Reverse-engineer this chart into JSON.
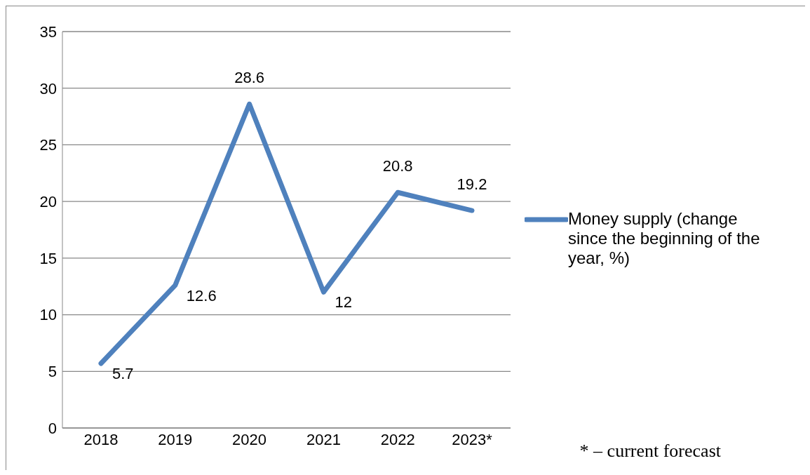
{
  "chart_data": {
    "type": "line",
    "categories": [
      "2018",
      "2019",
      "2020",
      "2021",
      "2022",
      "2023*"
    ],
    "series": [
      {
        "name": "Money supply (change since the beginning of the year, %)",
        "color": "#4f81bd",
        "values": [
          5.7,
          12.6,
          28.6,
          12,
          20.8,
          19.2
        ]
      }
    ],
    "ylim": [
      0,
      35
    ],
    "yticks": [
      0,
      5,
      10,
      15,
      20,
      25,
      30,
      35
    ],
    "grid": "y",
    "legend": "right",
    "marker": "none",
    "line_style": "solid",
    "data_labels": true,
    "annotations": [
      "* – current forecast"
    ]
  }
}
